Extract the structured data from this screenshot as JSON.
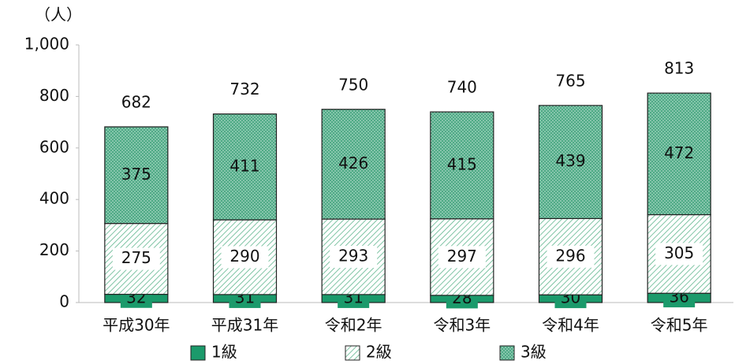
{
  "chart_data": {
    "type": "stacked_bar",
    "y_unit_label": "（人）",
    "categories": [
      "平成30年",
      "平成31年",
      "令和2年",
      "令和3年",
      "令和4年",
      "令和5年"
    ],
    "series": [
      {
        "name": "1級",
        "color": "#1b9a6b",
        "pattern": "solid",
        "values": [
          32,
          31,
          31,
          28,
          30,
          36
        ]
      },
      {
        "name": "2級",
        "color": "#5fb58e",
        "pattern": "hatch",
        "values": [
          275,
          290,
          293,
          297,
          296,
          305
        ]
      },
      {
        "name": "3級",
        "color": "#4faa86",
        "pattern": "dots",
        "values": [
          375,
          411,
          426,
          415,
          439,
          472
        ]
      }
    ],
    "totals": [
      682,
      732,
      750,
      740,
      765,
      813
    ],
    "ylim": [
      0,
      1000
    ],
    "yticks": [
      0,
      200,
      400,
      600,
      800,
      {
        "value": 1000,
        "label": "1,000"
      }
    ],
    "grid": false,
    "legend": "bottom"
  }
}
